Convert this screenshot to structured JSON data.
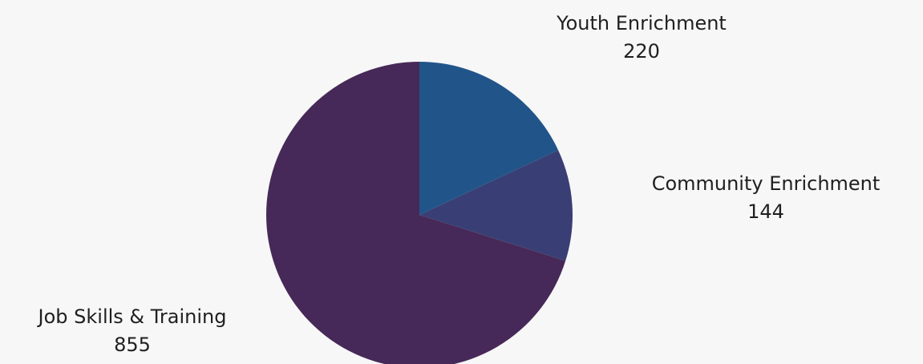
{
  "chart_data": {
    "type": "pie",
    "categories": [
      "Youth Enrichment",
      "Community Enrichment",
      "Job Skills & Training"
    ],
    "values": [
      220,
      144,
      855
    ],
    "colors": [
      "#21558a",
      "#393f74",
      "#462958"
    ],
    "start_angle_deg": 0,
    "direction": "clockwise"
  }
}
